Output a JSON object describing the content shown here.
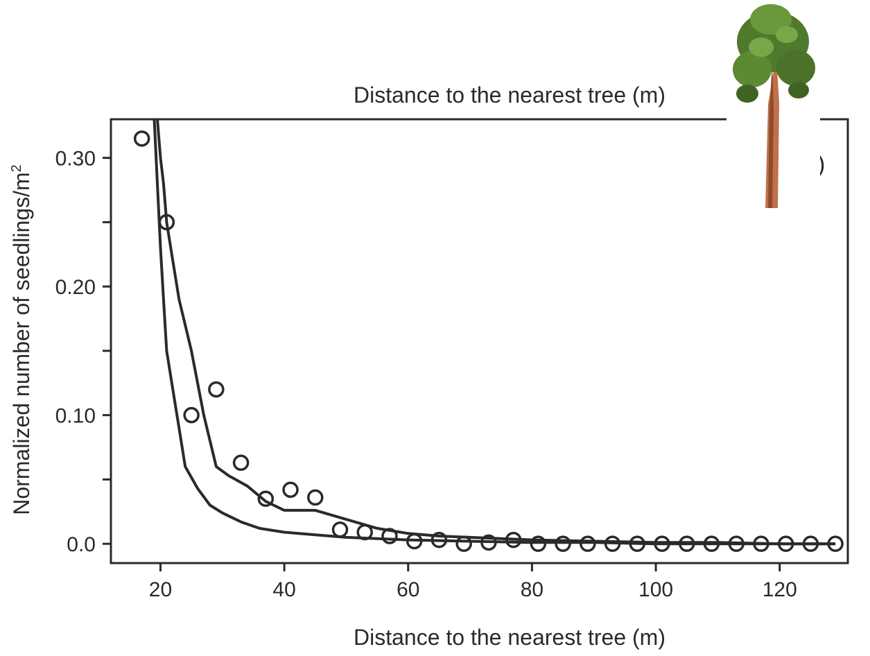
{
  "chart_data": {
    "type": "scatter",
    "xlabel": "Distance to the nearest tree (m)",
    "top_xlabel": "Distance to the nearest tree (m)",
    "ylabel_main": "Normalized number of seedlings/m",
    "ylabel_sup": "2",
    "panel_label": "c)",
    "xlim": [
      12,
      131
    ],
    "ylim": [
      -0.015,
      0.33
    ],
    "x_ticks": [
      20,
      40,
      60,
      80,
      100,
      120
    ],
    "x_tick_labels": [
      "20",
      "40",
      "60",
      "80",
      "100",
      "120"
    ],
    "y_major_ticks": [
      0.0,
      0.1,
      0.2,
      0.3
    ],
    "y_tick_labels": [
      "0.0",
      "0.10",
      "0.20",
      "0.30"
    ],
    "y_minor_ticks": [
      0.05,
      0.15,
      0.25
    ],
    "series": [
      {
        "kind": "points",
        "marker": "open-circle",
        "x": [
          17,
          21,
          25,
          29,
          33,
          37,
          41,
          45,
          49,
          53,
          57,
          61,
          65,
          69,
          73,
          77,
          81,
          85,
          89,
          93,
          97,
          101,
          105,
          109,
          113,
          117,
          121,
          125,
          129
        ],
        "y": [
          0.315,
          0.25,
          0.1,
          0.12,
          0.063,
          0.035,
          0.042,
          0.036,
          0.011,
          0.009,
          0.006,
          0.002,
          0.003,
          0.0,
          0.001,
          0.003,
          0.0,
          0.0,
          0.0,
          0.0,
          0.0,
          0.0,
          0.0,
          0.0,
          0.0,
          0.0,
          0.0,
          0.0,
          0.0
        ]
      },
      {
        "kind": "line",
        "x": [
          19.5,
          20.0,
          20.5,
          21.0,
          22.0,
          23.0,
          25.0,
          27.0,
          29.0,
          31.0,
          34.0,
          37.0,
          40.0,
          45.0,
          50.0,
          55.0,
          60.0,
          65.0,
          70.0,
          75.0,
          80.0,
          90.0,
          100.0,
          110.0,
          120.0,
          129.0
        ],
        "y": [
          0.33,
          0.3,
          0.28,
          0.25,
          0.22,
          0.19,
          0.15,
          0.1,
          0.06,
          0.053,
          0.045,
          0.033,
          0.026,
          0.026,
          0.019,
          0.012,
          0.008,
          0.006,
          0.005,
          0.004,
          0.003,
          0.002,
          0.001,
          0.001,
          0.0,
          0.0
        ]
      },
      {
        "kind": "line",
        "x": [
          19.0,
          19.5,
          20.0,
          20.5,
          21.0,
          22.0,
          23.0,
          24.0,
          26.0,
          28.0,
          30.0,
          33.0,
          36.0,
          40.0,
          45.0,
          50.0,
          55.0,
          60.0,
          70.0,
          80.0,
          90.0,
          100.0,
          110.0,
          120.0,
          129.0
        ],
        "y": [
          0.33,
          0.28,
          0.23,
          0.19,
          0.15,
          0.12,
          0.09,
          0.06,
          0.043,
          0.03,
          0.024,
          0.017,
          0.012,
          0.009,
          0.007,
          0.005,
          0.004,
          0.003,
          0.002,
          0.001,
          0.001,
          0.0,
          0.0,
          0.0,
          0.0
        ]
      }
    ],
    "grid": false,
    "legend": "none"
  },
  "colors": {
    "ink": "#2a2a2a",
    "tree_trunk": "#c0704a",
    "tree_foliage": "#4f7a2e"
  },
  "icons": {
    "tree": "tree-icon"
  }
}
